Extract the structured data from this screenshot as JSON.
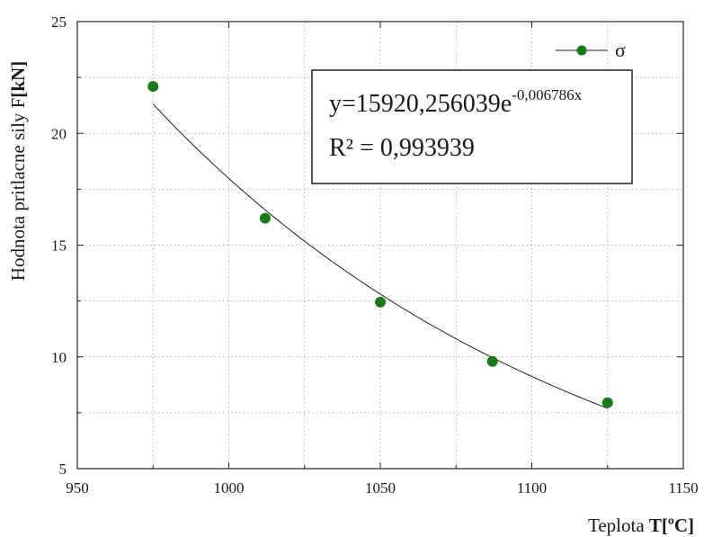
{
  "chart_data": {
    "type": "scatter",
    "xlabel_prefix": "Teplota ",
    "xlabel_strong": "T[ºC]",
    "ylabel_prefix": "Hodnota pritlacne sily F",
    "ylabel_strong": "[kN]",
    "xlim": [
      950,
      1150
    ],
    "ylim": [
      5,
      25
    ],
    "x_ticks": [
      950,
      1000,
      1050,
      1100,
      1150
    ],
    "y_ticks": [
      5,
      10,
      15,
      20,
      25
    ],
    "grid": true,
    "legend": {
      "position": "top-right",
      "label": "σ"
    },
    "series": [
      {
        "name": "σ",
        "color": "#1a7a1a",
        "points": [
          {
            "x": 975,
            "y": 22.1
          },
          {
            "x": 1012,
            "y": 16.2
          },
          {
            "x": 1050,
            "y": 12.45
          },
          {
            "x": 1087,
            "y": 9.8
          },
          {
            "x": 1125,
            "y": 7.95
          }
        ]
      }
    ],
    "fit": {
      "type": "exponential",
      "a": 15920.256039,
      "b": -0.006786,
      "equation_base": "y=15920,256039e",
      "equation_exponent": "-0,006786x",
      "r2_text": "R² = 0,993939"
    }
  }
}
